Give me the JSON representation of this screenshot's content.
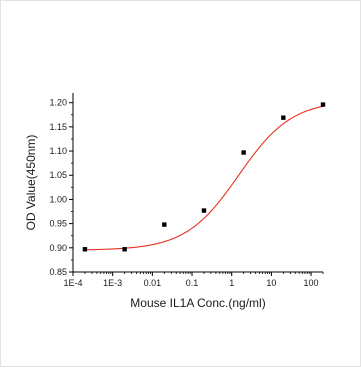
{
  "chart_data": {
    "type": "scatter",
    "xlabel": "Mouse IL1A Conc.(ng/ml)",
    "ylabel": "OD Value(450nm)",
    "x_scale": "log",
    "xlim": [
      0.0001,
      200
    ],
    "ylim": [
      0.85,
      1.22
    ],
    "x_ticks": [
      {
        "value": 0.0001,
        "label": "1E-4"
      },
      {
        "value": 0.001,
        "label": "1E-3"
      },
      {
        "value": 0.01,
        "label": "0.01"
      },
      {
        "value": 0.1,
        "label": "0.1"
      },
      {
        "value": 1,
        "label": "1"
      },
      {
        "value": 10,
        "label": "10"
      },
      {
        "value": 100,
        "label": "100"
      }
    ],
    "y_ticks": [
      {
        "value": 0.85,
        "label": "0.85"
      },
      {
        "value": 0.9,
        "label": "0.90"
      },
      {
        "value": 0.95,
        "label": "0.95"
      },
      {
        "value": 1.0,
        "label": "1.00"
      },
      {
        "value": 1.05,
        "label": "1.05"
      },
      {
        "value": 1.1,
        "label": "1.10"
      },
      {
        "value": 1.15,
        "label": "1.15"
      },
      {
        "value": 1.2,
        "label": "1.20"
      }
    ],
    "grid": false,
    "series": [
      {
        "points": [
          {
            "x": 0.0002,
            "y": 0.897
          },
          {
            "x": 0.002,
            "y": 0.897
          },
          {
            "x": 0.02,
            "y": 0.948
          },
          {
            "x": 0.2,
            "y": 0.977
          },
          {
            "x": 2,
            "y": 1.097
          },
          {
            "x": 20,
            "y": 1.169
          },
          {
            "x": 200,
            "y": 1.196
          }
        ],
        "color": "#000000"
      }
    ],
    "fit_curve": {
      "model": "4PL",
      "bottom": 0.895,
      "top": 1.205,
      "ec50": 1.5,
      "hill": 0.65,
      "color": "#e8321e"
    }
  }
}
